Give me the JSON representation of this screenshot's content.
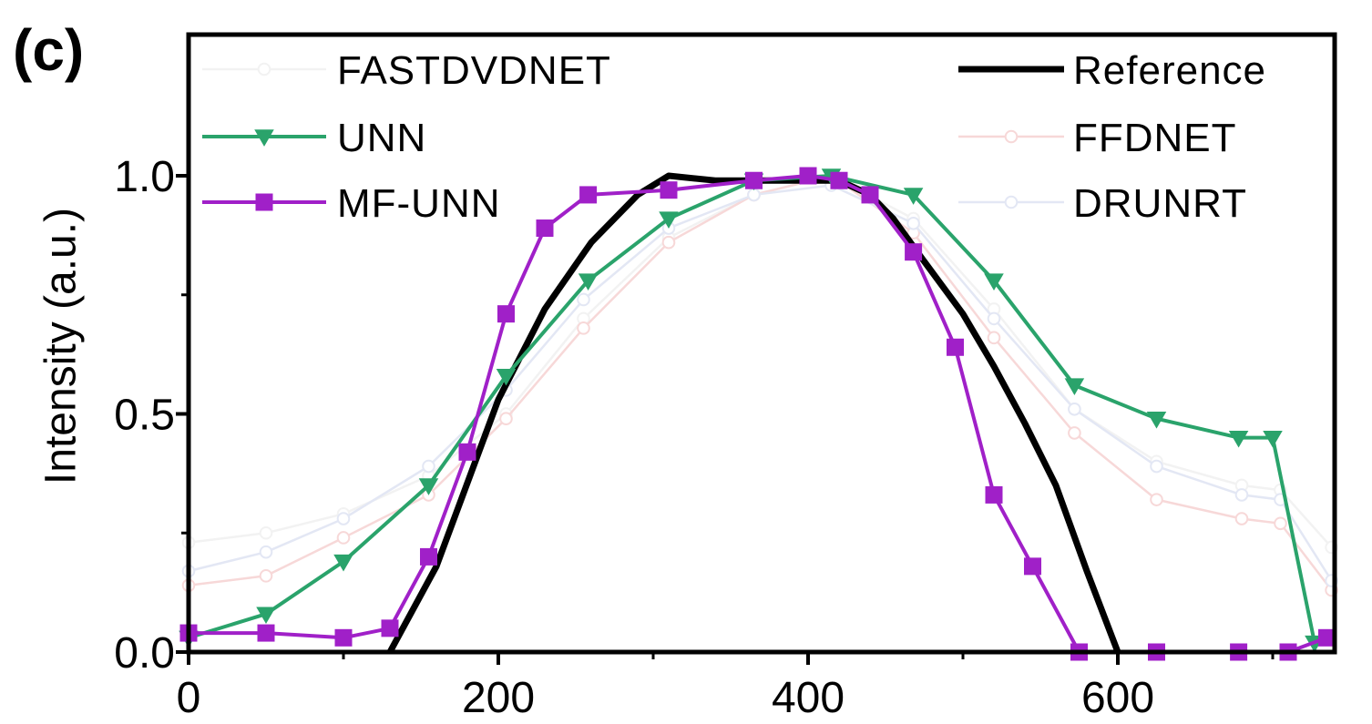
{
  "panel_label": "(c)",
  "chart_data": {
    "type": "line",
    "xlabel": "",
    "ylabel": "Intensity (a.u.)",
    "xlim": [
      0,
      740
    ],
    "ylim": [
      0,
      1.0
    ],
    "x_ticks": [
      0,
      200,
      400,
      600
    ],
    "x_tick_labels": [
      "0",
      "200",
      "400",
      "600"
    ],
    "y_ticks": [
      0,
      0.5,
      1.0
    ],
    "y_tick_labels": [
      "0.0",
      "0.5",
      "1.0"
    ],
    "grid": false,
    "legend_left": [
      "FASTDVDNET",
      "UNN",
      "MF-UNN"
    ],
    "legend_right": [
      "Reference",
      "FFDNET",
      "DRUNRT"
    ],
    "series": [
      {
        "name": "FASTDVDNET",
        "color": "#f2f2f2",
        "marker": "circle",
        "points": [
          [
            0,
            0.23
          ],
          [
            50,
            0.25
          ],
          [
            100,
            0.29
          ],
          [
            155,
            0.37
          ],
          [
            205,
            0.5
          ],
          [
            255,
            0.7
          ],
          [
            310,
            0.87
          ],
          [
            365,
            0.96
          ],
          [
            415,
            1.0
          ],
          [
            468,
            0.91
          ],
          [
            520,
            0.72
          ],
          [
            572,
            0.51
          ],
          [
            625,
            0.4
          ],
          [
            680,
            0.35
          ],
          [
            705,
            0.34
          ],
          [
            738,
            0.22
          ]
        ]
      },
      {
        "name": "FFDNET",
        "color": "#f7d8d8",
        "marker": "circle",
        "points": [
          [
            0,
            0.14
          ],
          [
            50,
            0.16
          ],
          [
            100,
            0.24
          ],
          [
            155,
            0.33
          ],
          [
            205,
            0.49
          ],
          [
            255,
            0.68
          ],
          [
            310,
            0.86
          ],
          [
            365,
            0.96
          ],
          [
            415,
            1.0
          ],
          [
            468,
            0.88
          ],
          [
            520,
            0.66
          ],
          [
            572,
            0.46
          ],
          [
            625,
            0.32
          ],
          [
            680,
            0.28
          ],
          [
            705,
            0.27
          ],
          [
            738,
            0.13
          ]
        ]
      },
      {
        "name": "DRUNRT",
        "color": "#e3e7f4",
        "marker": "circle",
        "points": [
          [
            0,
            0.17
          ],
          [
            50,
            0.21
          ],
          [
            100,
            0.28
          ],
          [
            155,
            0.39
          ],
          [
            205,
            0.55
          ],
          [
            255,
            0.74
          ],
          [
            310,
            0.89
          ],
          [
            365,
            0.96
          ],
          [
            415,
            0.98
          ],
          [
            468,
            0.9
          ],
          [
            520,
            0.7
          ],
          [
            572,
            0.51
          ],
          [
            625,
            0.39
          ],
          [
            680,
            0.33
          ],
          [
            705,
            0.32
          ],
          [
            738,
            0.15
          ]
        ]
      },
      {
        "name": "Reference",
        "color": "#000000",
        "marker": "none",
        "points": [
          [
            130,
            0.0
          ],
          [
            160,
            0.18
          ],
          [
            200,
            0.53
          ],
          [
            230,
            0.72
          ],
          [
            260,
            0.86
          ],
          [
            290,
            0.96
          ],
          [
            310,
            1.0
          ],
          [
            340,
            0.99
          ],
          [
            380,
            0.99
          ],
          [
            420,
            0.99
          ],
          [
            440,
            0.96
          ],
          [
            455,
            0.91
          ],
          [
            475,
            0.82
          ],
          [
            500,
            0.71
          ],
          [
            520,
            0.6
          ],
          [
            540,
            0.48
          ],
          [
            560,
            0.35
          ],
          [
            580,
            0.17
          ],
          [
            600,
            0.0
          ]
        ]
      },
      {
        "name": "UNN",
        "color": "#2aa36b",
        "marker": "triangle",
        "points": [
          [
            0,
            0.03
          ],
          [
            50,
            0.08
          ],
          [
            100,
            0.19
          ],
          [
            155,
            0.35
          ],
          [
            205,
            0.58
          ],
          [
            258,
            0.78
          ],
          [
            310,
            0.91
          ],
          [
            365,
            0.99
          ],
          [
            415,
            1.0
          ],
          [
            468,
            0.96
          ],
          [
            520,
            0.78
          ],
          [
            572,
            0.56
          ],
          [
            625,
            0.49
          ],
          [
            678,
            0.45
          ],
          [
            700,
            0.45
          ],
          [
            727,
            0.02
          ]
        ]
      },
      {
        "name": "MF-UNN",
        "color": "#a020c8",
        "marker": "square",
        "points": [
          [
            0,
            0.04
          ],
          [
            50,
            0.04
          ],
          [
            100,
            0.03
          ],
          [
            130,
            0.05
          ],
          [
            155,
            0.2
          ],
          [
            180,
            0.42
          ],
          [
            205,
            0.71
          ],
          [
            230,
            0.89
          ],
          [
            258,
            0.96
          ],
          [
            310,
            0.97
          ],
          [
            365,
            0.99
          ],
          [
            400,
            1.0
          ],
          [
            420,
            0.99
          ],
          [
            440,
            0.96
          ],
          [
            468,
            0.84
          ],
          [
            495,
            0.64
          ],
          [
            520,
            0.33
          ],
          [
            545,
            0.18
          ],
          [
            575,
            0.0
          ],
          [
            625,
            0.0
          ],
          [
            678,
            0.0
          ],
          [
            710,
            0.0
          ],
          [
            735,
            0.03
          ]
        ]
      }
    ]
  }
}
